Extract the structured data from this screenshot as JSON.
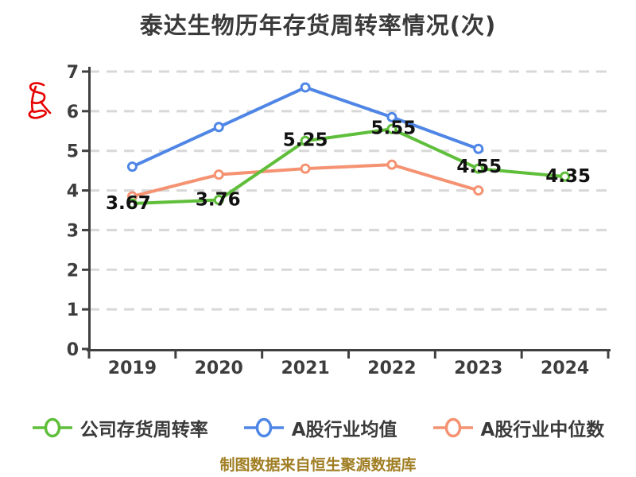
{
  "chart_data": {
    "type": "line",
    "title": "泰达生物历年存货周转率情况(次)",
    "categories": [
      "2019",
      "2020",
      "2021",
      "2022",
      "2023",
      "2024"
    ],
    "series": [
      {
        "name": "公司存货周转率",
        "color": "#5fbe3a",
        "values": [
          3.67,
          3.76,
          5.25,
          5.55,
          4.55,
          4.35
        ],
        "data_labels": true,
        "label_dx": [
          -5,
          -1,
          0,
          2,
          1,
          4
        ],
        "label_dy": [
          7,
          7,
          6,
          6,
          5,
          7
        ]
      },
      {
        "name": "A股行业均值",
        "color": "#4f86e6",
        "values": [
          4.6,
          5.6,
          6.6,
          5.85,
          5.05,
          null
        ],
        "data_labels": false
      },
      {
        "name": "A股行业中位数",
        "color": "#f49272",
        "values": [
          3.85,
          4.4,
          4.55,
          4.65,
          4.0,
          null
        ],
        "data_labels": false
      }
    ],
    "ylim": [
      0,
      7
    ],
    "yticks": [
      0,
      1,
      2,
      3,
      4,
      5,
      6,
      7
    ],
    "grid": "horizontal-dashed",
    "legend_position": "bottom",
    "marker_style": "white-filled-circle"
  },
  "caption": {
    "text": "制图数据来自恒生聚源数据库"
  },
  "watermark": {
    "name": "red-script-r-watermark"
  },
  "colors": {
    "axis": "#404040",
    "grid": "#d8d8d8",
    "tick_text": "#3d3d3d",
    "title_text": "#3a3a3a",
    "legend_text": "#3a3a3a",
    "data_label": "#111111",
    "caption_text": "#a07e24",
    "watermark": "#e60000",
    "marker_fill": "#ffffff",
    "background": "#ffffff"
  }
}
